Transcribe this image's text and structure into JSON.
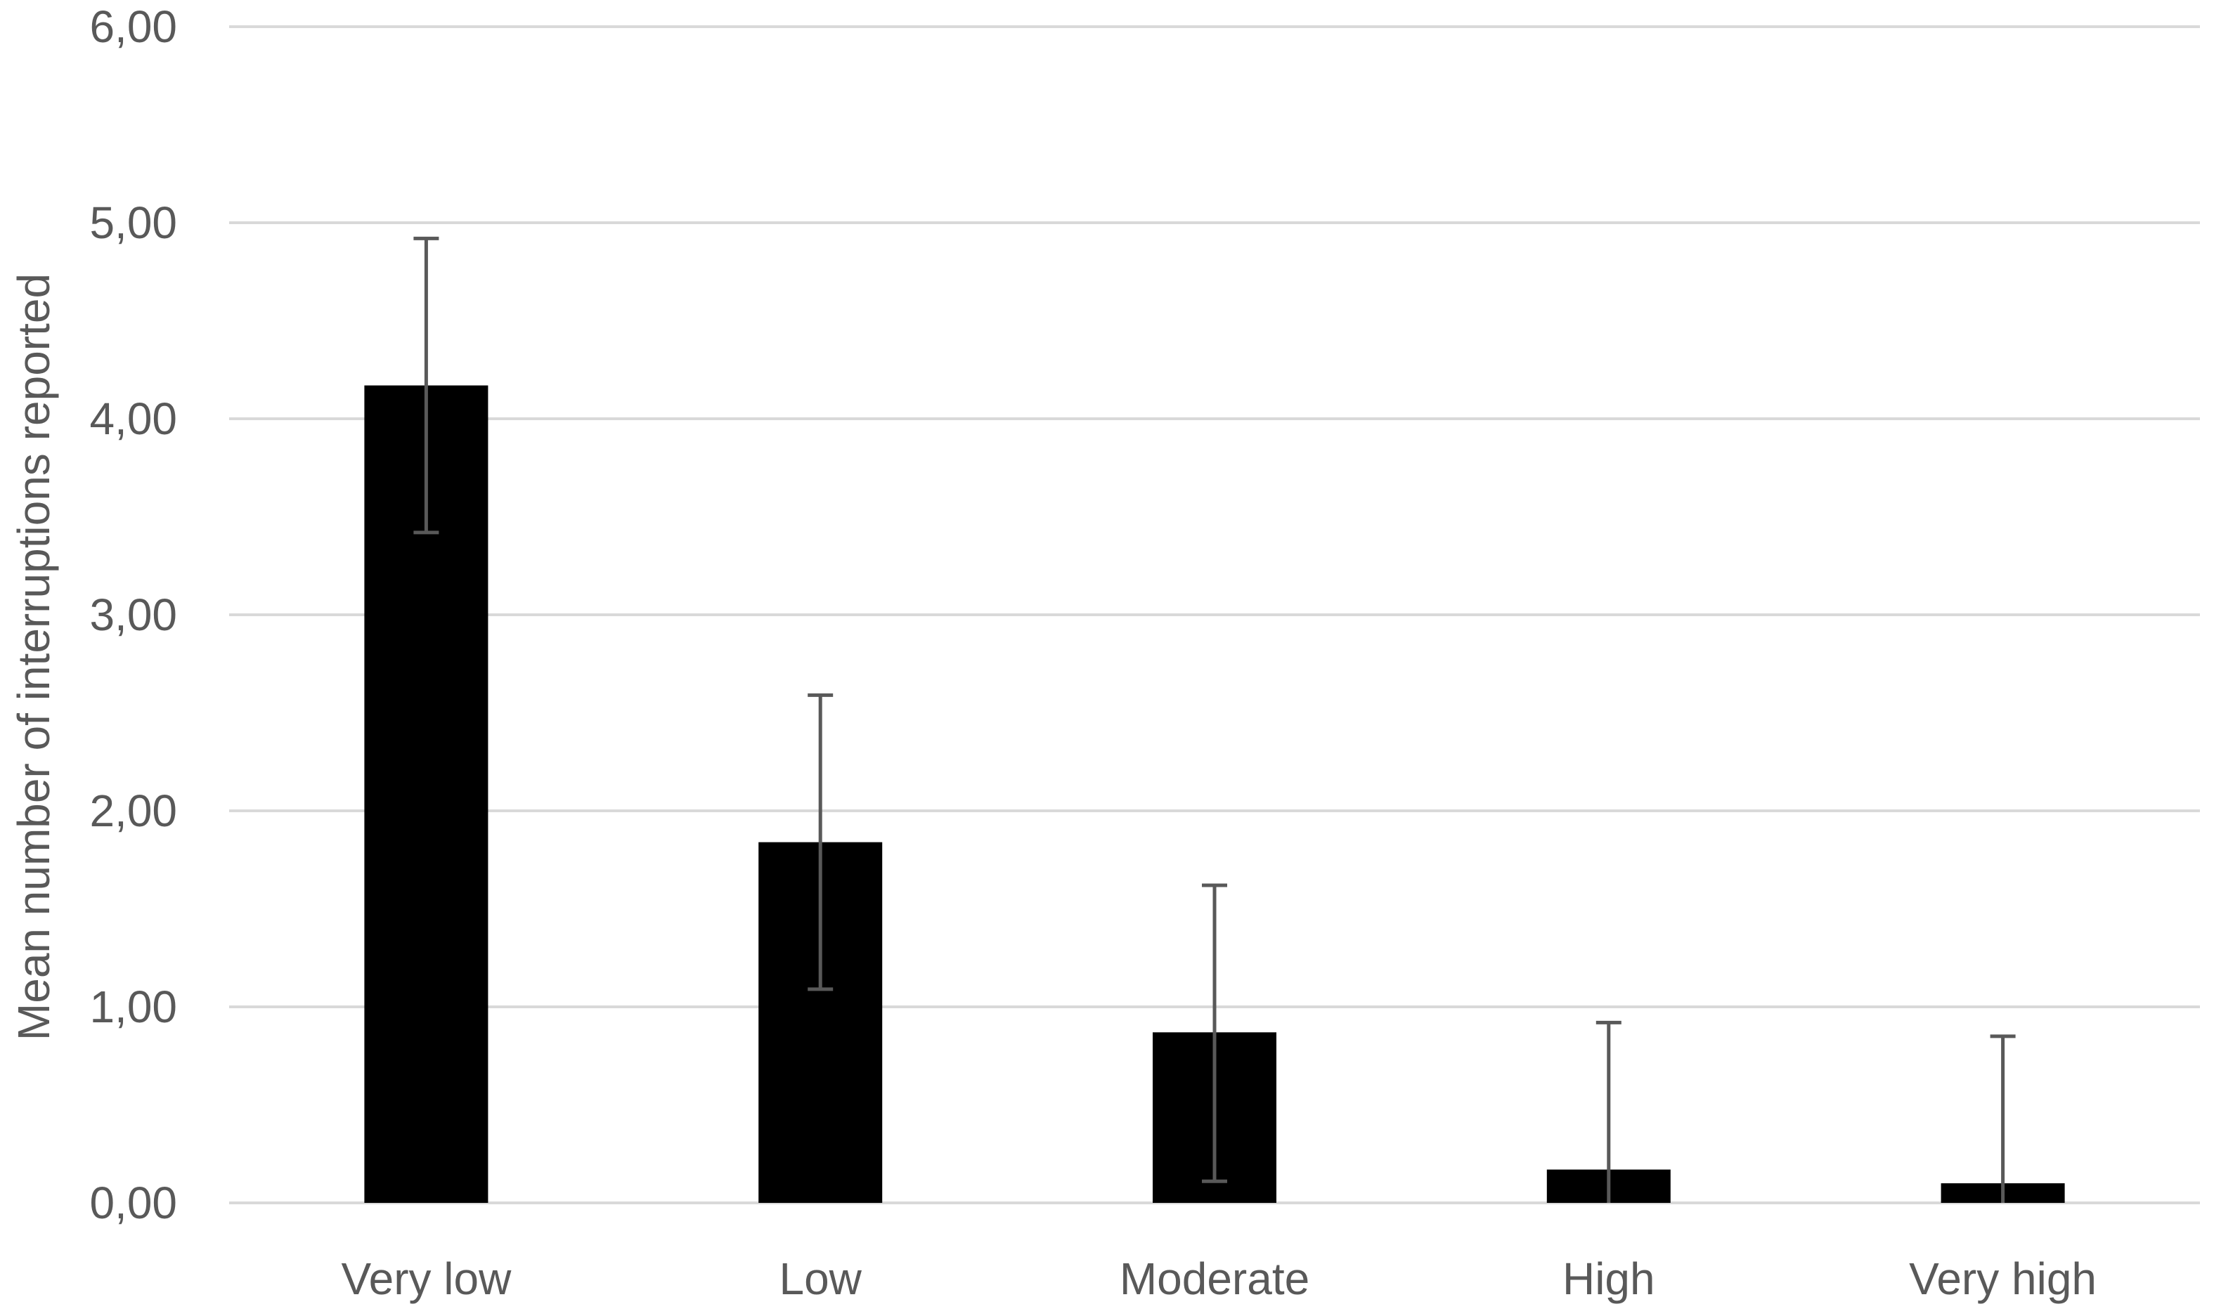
{
  "chart_data": {
    "type": "bar",
    "title": "",
    "xlabel": "",
    "ylabel": "Mean number of interruptions reported",
    "categories": [
      "Very low",
      "Low",
      "Moderate",
      "High",
      "Very high"
    ],
    "values": [
      4.17,
      1.84,
      0.87,
      0.17,
      0.1
    ],
    "error_bars": [
      {
        "low": 3.42,
        "high": 4.92
      },
      {
        "low": 1.09,
        "high": 2.59
      },
      {
        "low": 0.11,
        "high": 1.62
      },
      {
        "low": 0.0,
        "high": 0.92
      },
      {
        "low": 0.0,
        "high": 0.85
      }
    ],
    "ylim": [
      0,
      6
    ],
    "yticks": [
      0,
      1,
      2,
      3,
      4,
      5,
      6
    ],
    "ytick_labels": [
      "0,00",
      "1,00",
      "2,00",
      "3,00",
      "4,00",
      "5,00",
      "6,00"
    ],
    "grid": true,
    "legend": "none",
    "colors": {
      "bar": "#000000",
      "error_bar": "#595959",
      "grid": "#d9d9d9",
      "text": "#595959"
    }
  }
}
